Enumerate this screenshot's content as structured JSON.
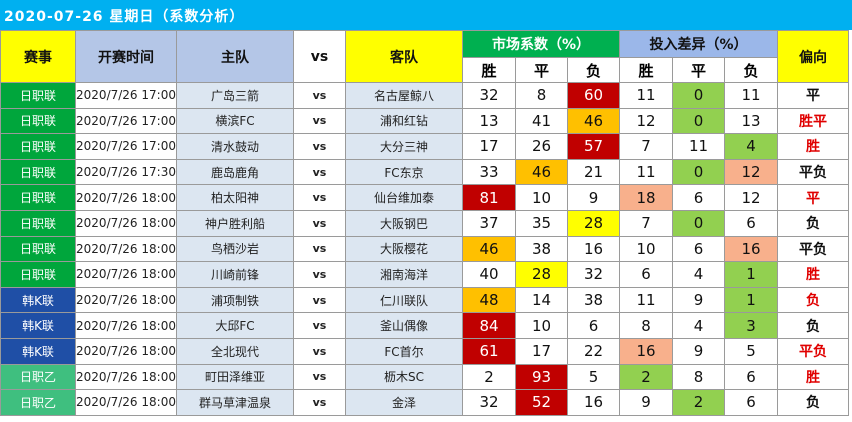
{
  "title": "2020-07-26 星期日（系数分析）",
  "headers": {
    "league": "赛事",
    "time": "开赛时间",
    "home": "主队",
    "vs": "vs",
    "away": "客队",
    "market": "市场系数（%）",
    "diff": "投入差异（%）",
    "pick": "偏向",
    "win": "胜",
    "draw": "平",
    "lose": "负"
  },
  "colors": {
    "title_bg": "#00b0f0",
    "league_jp": "#00a63c",
    "league_kr": "#1f4fa6",
    "league_jp2": "#3fbf7f",
    "highlight_dark_red": "#c00000",
    "highlight_orange": "#ffc000",
    "highlight_yellow": "#ffff00",
    "highlight_green": "#92d050",
    "highlight_salmon": "#f8b08c",
    "pick_red": "#e00000"
  },
  "rows": [
    {
      "league": "日职联",
      "time": "2020/7/26 17:00",
      "home": "广岛三箭",
      "vs": "vs",
      "away": "名古屋鲸八",
      "m": [
        "32",
        "8",
        "60"
      ],
      "d": [
        "11",
        "0",
        "11"
      ],
      "pick": "平",
      "mh": [
        0,
        0,
        1
      ],
      "dh": [
        0,
        3,
        0
      ],
      "pickRed": false,
      "lg": "jp"
    },
    {
      "league": "日职联",
      "time": "2020/7/26 17:00",
      "home": "横滨FC",
      "vs": "vs",
      "away": "浦和红钻",
      "m": [
        "13",
        "41",
        "46"
      ],
      "d": [
        "12",
        "0",
        "13"
      ],
      "pick": "胜平",
      "mh": [
        0,
        0,
        2
      ],
      "dh": [
        0,
        3,
        0
      ],
      "pickRed": true,
      "lg": "jp"
    },
    {
      "league": "日职联",
      "time": "2020/7/26 17:00",
      "home": "清水鼓动",
      "vs": "vs",
      "away": "大分三神",
      "m": [
        "17",
        "26",
        "57"
      ],
      "d": [
        "7",
        "11",
        "4"
      ],
      "pick": "胜",
      "mh": [
        0,
        0,
        1
      ],
      "dh": [
        0,
        0,
        3
      ],
      "pickRed": true,
      "lg": "jp"
    },
    {
      "league": "日职联",
      "time": "2020/7/26 17:30",
      "home": "鹿岛鹿角",
      "vs": "vs",
      "away": "FC东京",
      "m": [
        "33",
        "46",
        "21"
      ],
      "d": [
        "11",
        "0",
        "12"
      ],
      "pick": "平负",
      "mh": [
        0,
        2,
        0
      ],
      "dh": [
        0,
        3,
        4
      ],
      "pickRed": false,
      "lg": "jp"
    },
    {
      "league": "日职联",
      "time": "2020/7/26 18:00",
      "home": "柏太阳神",
      "vs": "vs",
      "away": "仙台维加泰",
      "m": [
        "81",
        "10",
        "9"
      ],
      "d": [
        "18",
        "6",
        "12"
      ],
      "pick": "平",
      "mh": [
        1,
        0,
        0
      ],
      "dh": [
        4,
        0,
        0
      ],
      "pickRed": true,
      "lg": "jp"
    },
    {
      "league": "日职联",
      "time": "2020/7/26 18:00",
      "home": "神户胜利船",
      "vs": "vs",
      "away": "大阪钢巴",
      "m": [
        "37",
        "35",
        "28"
      ],
      "d": [
        "7",
        "0",
        "6"
      ],
      "pick": "负",
      "mh": [
        0,
        0,
        5
      ],
      "dh": [
        0,
        3,
        0
      ],
      "pickRed": false,
      "lg": "jp"
    },
    {
      "league": "日职联",
      "time": "2020/7/26 18:00",
      "home": "鸟栖沙岩",
      "vs": "vs",
      "away": "大阪樱花",
      "m": [
        "46",
        "38",
        "16"
      ],
      "d": [
        "10",
        "6",
        "16"
      ],
      "pick": "平负",
      "mh": [
        2,
        0,
        0
      ],
      "dh": [
        0,
        0,
        4
      ],
      "pickRed": false,
      "lg": "jp"
    },
    {
      "league": "日职联",
      "time": "2020/7/26 18:00",
      "home": "川崎前锋",
      "vs": "vs",
      "away": "湘南海洋",
      "m": [
        "40",
        "28",
        "32"
      ],
      "d": [
        "6",
        "4",
        "1"
      ],
      "pick": "胜",
      "mh": [
        0,
        5,
        0
      ],
      "dh": [
        0,
        0,
        3
      ],
      "pickRed": true,
      "lg": "jp"
    },
    {
      "league": "韩K联",
      "time": "2020/7/26 18:00",
      "home": "浦项制铁",
      "vs": "vs",
      "away": "仁川联队",
      "m": [
        "48",
        "14",
        "38"
      ],
      "d": [
        "11",
        "9",
        "1"
      ],
      "pick": "负",
      "mh": [
        2,
        0,
        0
      ],
      "dh": [
        0,
        0,
        3
      ],
      "pickRed": true,
      "lg": "kr"
    },
    {
      "league": "韩K联",
      "time": "2020/7/26 18:00",
      "home": "大邱FC",
      "vs": "vs",
      "away": "釜山偶像",
      "m": [
        "84",
        "10",
        "6"
      ],
      "d": [
        "8",
        "4",
        "3"
      ],
      "pick": "负",
      "mh": [
        1,
        0,
        0
      ],
      "dh": [
        0,
        0,
        3
      ],
      "pickRed": false,
      "lg": "kr"
    },
    {
      "league": "韩K联",
      "time": "2020/7/26 18:00",
      "home": "全北现代",
      "vs": "vs",
      "away": "FC首尔",
      "m": [
        "61",
        "17",
        "22"
      ],
      "d": [
        "16",
        "9",
        "5"
      ],
      "pick": "平负",
      "mh": [
        1,
        0,
        0
      ],
      "dh": [
        4,
        0,
        0
      ],
      "pickRed": true,
      "lg": "kr"
    },
    {
      "league": "日职乙",
      "time": "2020/7/26 18:00",
      "home": "町田泽维亚",
      "vs": "vs",
      "away": "枥木SC",
      "m": [
        "2",
        "93",
        "5"
      ],
      "d": [
        "2",
        "8",
        "6"
      ],
      "pick": "胜",
      "mh": [
        0,
        1,
        0
      ],
      "dh": [
        3,
        0,
        0
      ],
      "pickRed": true,
      "lg": "jp2"
    },
    {
      "league": "日职乙",
      "time": "2020/7/26 18:00",
      "home": "群马草津温泉",
      "vs": "vs",
      "away": "金泽",
      "m": [
        "32",
        "52",
        "16"
      ],
      "d": [
        "9",
        "2",
        "6"
      ],
      "pick": "负",
      "mh": [
        0,
        1,
        0
      ],
      "dh": [
        0,
        3,
        0
      ],
      "pickRed": false,
      "lg": "jp2"
    }
  ]
}
